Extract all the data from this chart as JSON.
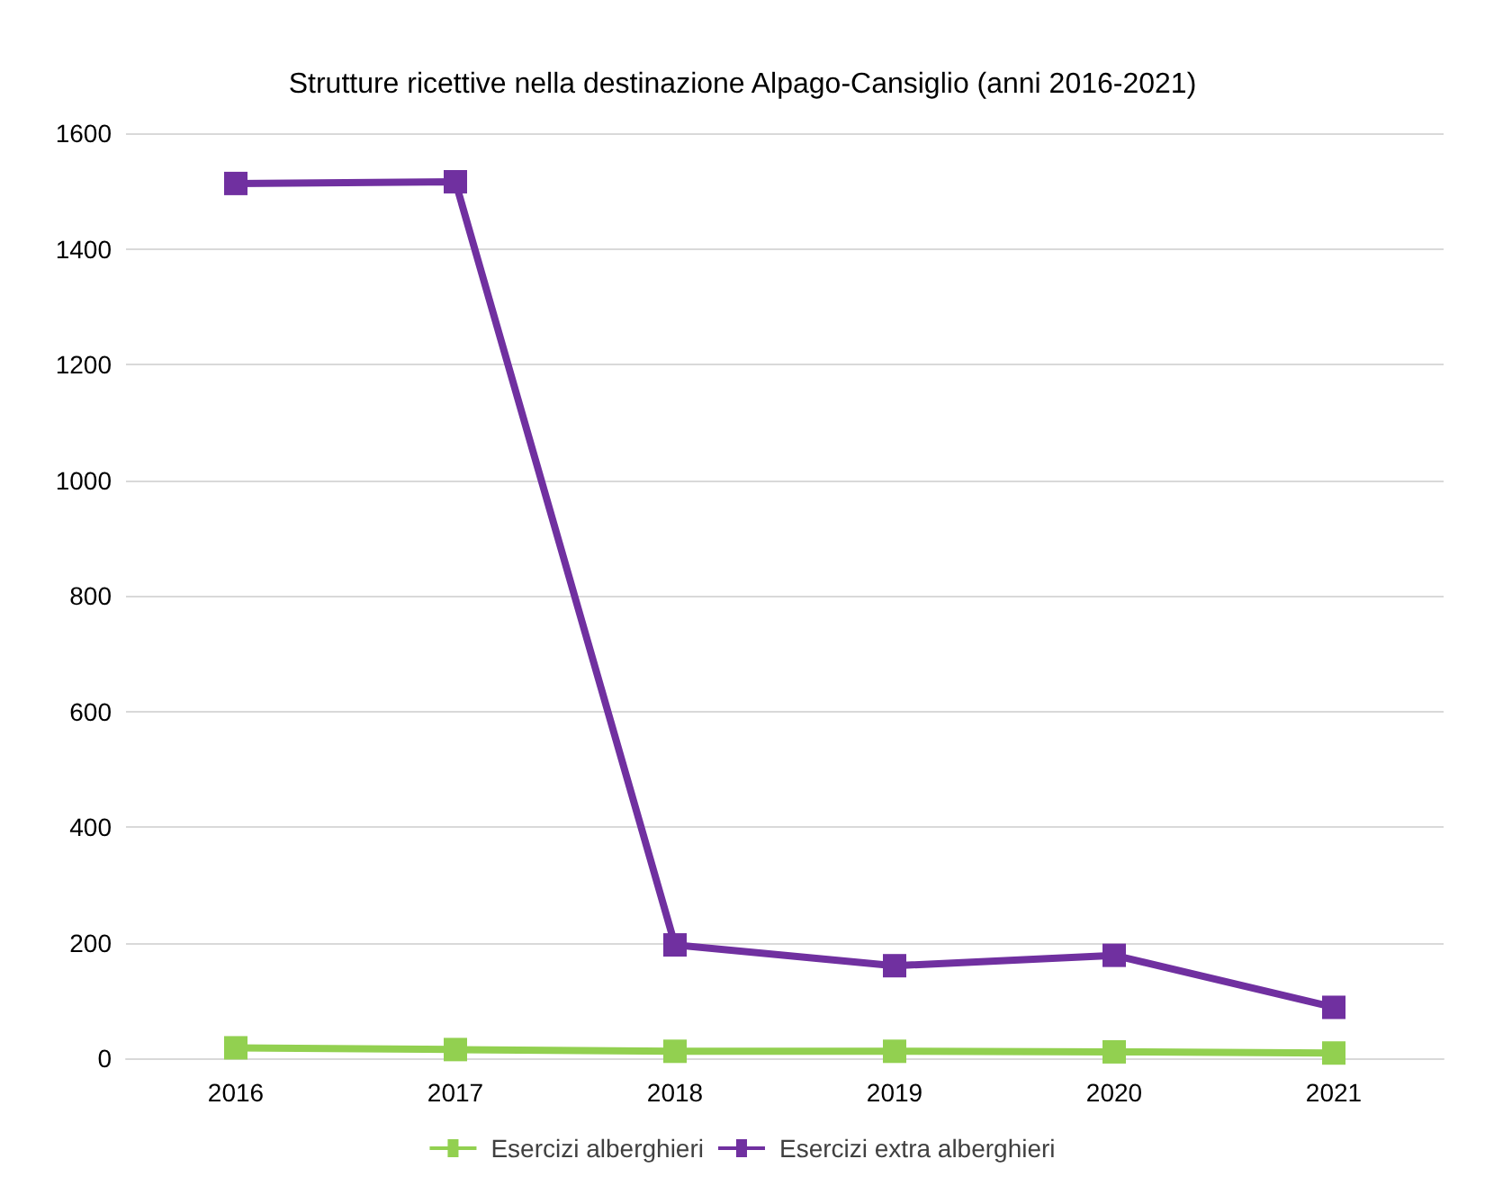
{
  "chart_data": {
    "type": "line",
    "title": "Strutture ricettive nella destinazione Alpago-Cansiglio (anni 2016-2021)",
    "categories": [
      "2016",
      "2017",
      "2018",
      "2019",
      "2020",
      "2021"
    ],
    "series": [
      {
        "name": "Esercizi alberghieri",
        "color": "#92d050",
        "values": [
          18,
          15,
          12,
          12,
          11,
          9
        ]
      },
      {
        "name": "Esercizi extra alberghieri",
        "color": "#7030a0",
        "values": [
          1513,
          1516,
          196,
          160,
          178,
          88
        ]
      }
    ],
    "ylim": [
      0,
      1600
    ],
    "yticks": [
      0,
      200,
      400,
      600,
      800,
      1000,
      1200,
      1400,
      1600
    ],
    "grid": "y",
    "legend": "bottom",
    "marker": "square",
    "line_style": "solid"
  }
}
